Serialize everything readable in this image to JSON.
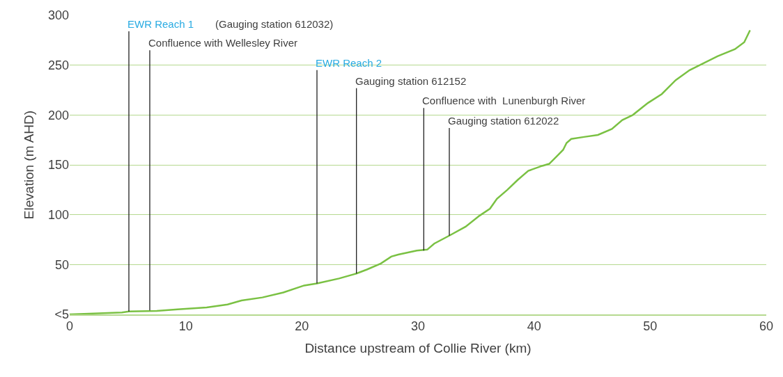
{
  "chart_data": {
    "type": "line",
    "xlabel": "Distance upstream of Collie River (km)",
    "ylabel": "Elevation (m AHD)",
    "xlim": [
      0,
      60
    ],
    "xticks": [
      0,
      10,
      20,
      30,
      40,
      50,
      60
    ],
    "ylim": [
      0,
      300
    ],
    "yticks": [
      {
        "value": 0,
        "label": "<5"
      },
      50,
      100,
      150,
      200,
      250,
      300
    ],
    "grid": "y",
    "marker": "none",
    "line_style": "solid",
    "series": [
      {
        "color": "#7ac143",
        "x": [
          0,
          4.5,
          5.1,
          7.5,
          9.3,
          11.8,
          13.6,
          14.8,
          16.6,
          18.4,
          20.2,
          21.3,
          23.2,
          24.7,
          25.6,
          26.8,
          27.7,
          28.3,
          29.9,
          30.8,
          31.4,
          32.7,
          34.1,
          35.3,
          36.2,
          36.8,
          37.7,
          38.6,
          39.5,
          40.7,
          41.3,
          41.9,
          42.5,
          42.8,
          43.2,
          44.3,
          45.5,
          46.7,
          47.6,
          48.5,
          49.8,
          51.0,
          52.2,
          53.4,
          54.6,
          55.8,
          57.3,
          58.1,
          58.6
        ],
        "values": [
          0,
          2,
          3,
          3.5,
          5,
          7,
          10,
          14,
          17,
          22,
          29,
          31,
          36,
          41,
          45,
          51,
          58,
          60,
          64,
          65,
          71,
          79,
          88,
          99,
          106,
          116,
          125,
          135,
          144,
          149,
          151,
          158,
          165,
          172,
          176,
          178,
          180,
          186,
          195,
          200,
          212,
          221,
          235,
          245,
          252,
          259,
          266,
          273,
          285
        ]
      },
      {
        "color": "#202020",
        "x": [
          5.1,
          5.1
        ],
        "values": [
          3,
          284
        ]
      },
      {
        "color": "#202020",
        "x": [
          6.9,
          6.9
        ],
        "values": [
          4,
          265
        ]
      },
      {
        "color": "#202020",
        "x": [
          21.3,
          21.3
        ],
        "values": [
          31,
          245
        ]
      },
      {
        "color": "#202020",
        "x": [
          24.7,
          24.7
        ],
        "values": [
          41,
          227
        ]
      },
      {
        "color": "#202020",
        "x": [
          30.5,
          30.5
        ],
        "values": [
          64,
          207
        ]
      },
      {
        "color": "#202020",
        "x": [
          32.7,
          32.7
        ],
        "values": [
          79,
          187
        ]
      }
    ],
    "annotations": [
      {
        "text": "EWR Reach 1",
        "x": 5.1,
        "y": 284
      },
      "(Gauging station 612032)",
      {
        "text": "Confluence with Wellesley River",
        "x": 6.9,
        "y": 265
      },
      {
        "text": "EWR Reach 2",
        "x": 21.3,
        "y": 245
      },
      {
        "text": "Gauging station 612152",
        "x": 24.7,
        "y": 227
      },
      {
        "text": "Confluence with  Lunenburgh River",
        "x": 30.5,
        "y": 207
      },
      {
        "text": "Gauging station 612022",
        "x": 32.7,
        "y": 187
      }
    ]
  }
}
